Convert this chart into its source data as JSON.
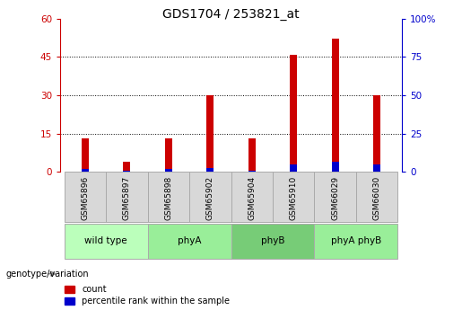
{
  "title": "GDS1704 / 253821_at",
  "samples": [
    "GSM65896",
    "GSM65897",
    "GSM65898",
    "GSM65902",
    "GSM65904",
    "GSM65910",
    "GSM66029",
    "GSM66030"
  ],
  "red_values": [
    13,
    4,
    13,
    30,
    13,
    46,
    52,
    30
  ],
  "blue_values": [
    1.2,
    0.5,
    1.2,
    1.5,
    0.5,
    3.0,
    4.0,
    3.0
  ],
  "groups": [
    {
      "label": "wild type",
      "start": 0,
      "end": 2,
      "color": "#bbffbb"
    },
    {
      "label": "phyA",
      "start": 2,
      "end": 4,
      "color": "#99ee99"
    },
    {
      "label": "phyB",
      "start": 4,
      "end": 6,
      "color": "#77cc77"
    },
    {
      "label": "phyA phyB",
      "start": 6,
      "end": 8,
      "color": "#99ee99"
    }
  ],
  "left_yticks": [
    0,
    15,
    30,
    45,
    60
  ],
  "right_yticks": [
    0,
    25,
    50,
    75,
    100
  ],
  "left_color": "#cc0000",
  "right_color": "#0000cc",
  "bar_width": 0.18,
  "genotype_label": "genotype/variation",
  "legend_count": "count",
  "legend_pct": "percentile rank within the sample",
  "title_fontsize": 10,
  "tick_fontsize": 7.5,
  "sample_label_fontsize": 6.5,
  "group_label_fontsize": 7.5
}
